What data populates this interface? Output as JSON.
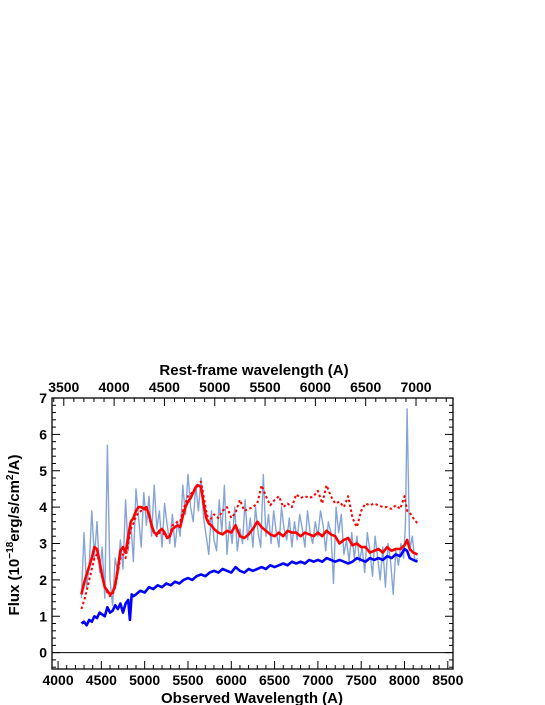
{
  "chart_data": {
    "type": "line",
    "xlabel": "Observed Wavelength (A)",
    "x2label": "Rest-frame wavelength (A)",
    "ylabel_main": "Flux (10",
    "ylabel_exp1": "−18",
    "ylabel_mid": "erg/s/cm",
    "ylabel_exp2": "2",
    "ylabel_end": "/A)",
    "xlim": [
      3930,
      8560
    ],
    "ylim": [
      -0.45,
      7
    ],
    "x_ticks": [
      4000,
      4500,
      5000,
      5500,
      6000,
      6500,
      7000,
      7500,
      8000,
      8500
    ],
    "x2_ticks": [
      3500,
      4000,
      4500,
      5000,
      5500,
      6000,
      6500,
      7000
    ],
    "x2_tick_positions_observed": [
      4066,
      4647,
      5228,
      5809,
      6390,
      6971,
      7552,
      8133
    ],
    "y_ticks": [
      0,
      1,
      2,
      3,
      4,
      5,
      6,
      7
    ],
    "zero_line": 0,
    "series": [
      {
        "color": "#7f9fd4",
        "style": "observed-spectrum",
        "x": [
          4270,
          4300,
          4330,
          4360,
          4390,
          4420,
          4450,
          4480,
          4510,
          4540,
          4570,
          4600,
          4630,
          4660,
          4690,
          4720,
          4750,
          4780,
          4810,
          4840,
          4870,
          4900,
          4930,
          4960,
          4990,
          5020,
          5050,
          5080,
          5110,
          5140,
          5170,
          5200,
          5230,
          5260,
          5290,
          5320,
          5350,
          5380,
          5410,
          5440,
          5470,
          5500,
          5530,
          5560,
          5590,
          5620,
          5650,
          5680,
          5710,
          5740,
          5770,
          5800,
          5830,
          5860,
          5890,
          5920,
          5950,
          5980,
          6010,
          6040,
          6070,
          6100,
          6130,
          6160,
          6190,
          6220,
          6250,
          6280,
          6310,
          6340,
          6370,
          6400,
          6430,
          6460,
          6490,
          6520,
          6550,
          6580,
          6610,
          6640,
          6670,
          6700,
          6730,
          6760,
          6790,
          6820,
          6850,
          6880,
          6910,
          6940,
          6970,
          7000,
          7030,
          7060,
          7090,
          7120,
          7150,
          7180,
          7210,
          7240,
          7270,
          7300,
          7330,
          7360,
          7390,
          7420,
          7450,
          7480,
          7510,
          7540,
          7570,
          7600,
          7630,
          7660,
          7690,
          7720,
          7750,
          7780,
          7810,
          7840,
          7870,
          7900,
          7930,
          7960,
          7990,
          8010,
          8030,
          8060,
          8090,
          8120,
          8150
        ],
        "y": [
          1.5,
          3.3,
          1.8,
          2.4,
          3.9,
          2.6,
          3.6,
          2.2,
          2.9,
          1.5,
          5.7,
          2.0,
          1.3,
          2.6,
          2.2,
          3.1,
          2.3,
          4.2,
          2.8,
          3.6,
          2.5,
          4.5,
          3.7,
          2.9,
          4.4,
          3.5,
          4.3,
          3.2,
          4.6,
          3.4,
          3.9,
          2.9,
          4.1,
          3.5,
          3.0,
          3.8,
          2.9,
          3.6,
          3.2,
          4.6,
          3.8,
          4.9,
          4.0,
          3.6,
          4.6,
          3.9,
          4.8,
          3.7,
          3.2,
          2.7,
          3.9,
          3.1,
          2.8,
          4.2,
          3.3,
          4.6,
          2.7,
          3.6,
          3.0,
          4.0,
          2.8,
          3.4,
          3.0,
          4.2,
          3.1,
          3.7,
          2.9,
          4.0,
          3.3,
          2.9,
          4.9,
          3.2,
          3.8,
          3.0,
          3.9,
          3.3,
          2.9,
          4.0,
          3.4,
          3.1,
          3.7,
          2.9,
          3.6,
          3.1,
          3.8,
          3.4,
          2.9,
          3.9,
          3.3,
          3.0,
          3.6,
          3.2,
          3.9,
          3.5,
          2.8,
          3.6,
          3.3,
          1.9,
          4.0,
          3.3,
          3.8,
          2.7,
          3.1,
          2.5,
          3.3,
          2.6,
          3.2,
          2.5,
          2.9,
          2.2,
          3.3,
          2.8,
          2.1,
          3.2,
          2.6,
          2.0,
          2.9,
          1.8,
          3.0,
          2.5,
          1.6,
          2.8,
          2.4,
          3.0,
          2.6,
          3.5,
          6.7,
          2.8,
          3.2,
          2.5,
          2.6
        ]
      },
      {
        "color": "#ff0000",
        "style": "model-solid",
        "x": [
          4270,
          4310,
          4350,
          4390,
          4420,
          4450,
          4480,
          4510,
          4540,
          4570,
          4600,
          4630,
          4660,
          4690,
          4720,
          4750,
          4780,
          4810,
          4840,
          4870,
          4900,
          4930,
          4960,
          4990,
          5020,
          5050,
          5080,
          5110,
          5140,
          5170,
          5200,
          5230,
          5260,
          5290,
          5320,
          5350,
          5380,
          5410,
          5440,
          5470,
          5500,
          5530,
          5560,
          5590,
          5620,
          5650,
          5680,
          5710,
          5740,
          5770,
          5800,
          5850,
          5900,
          5950,
          6000,
          6050,
          6100,
          6150,
          6200,
          6250,
          6300,
          6350,
          6400,
          6450,
          6500,
          6550,
          6600,
          6650,
          6700,
          6750,
          6800,
          6850,
          6900,
          6950,
          7000,
          7050,
          7100,
          7150,
          7200,
          7250,
          7300,
          7350,
          7400,
          7450,
          7500,
          7550,
          7600,
          7650,
          7700,
          7750,
          7800,
          7850,
          7900,
          7950,
          8000,
          8030,
          8060,
          8100,
          8150
        ],
        "y": [
          1.6,
          2.0,
          2.3,
          2.6,
          2.9,
          2.85,
          2.5,
          2.1,
          1.8,
          1.7,
          1.6,
          1.65,
          1.85,
          2.3,
          2.8,
          2.9,
          2.75,
          3.2,
          3.6,
          3.7,
          3.9,
          4.0,
          4.0,
          3.95,
          4.0,
          3.8,
          3.5,
          3.3,
          3.25,
          3.35,
          3.4,
          3.3,
          3.15,
          3.2,
          3.4,
          3.45,
          3.5,
          3.45,
          3.75,
          4.0,
          4.15,
          4.25,
          4.4,
          4.55,
          4.6,
          4.55,
          4.1,
          3.7,
          3.55,
          3.5,
          3.4,
          3.3,
          3.25,
          3.35,
          3.3,
          3.5,
          3.2,
          3.15,
          3.25,
          3.4,
          3.6,
          3.45,
          3.35,
          3.25,
          3.2,
          3.3,
          3.2,
          3.35,
          3.3,
          3.3,
          3.2,
          3.3,
          3.25,
          3.2,
          3.3,
          3.2,
          3.35,
          3.25,
          3.2,
          3.0,
          3.1,
          3.15,
          2.95,
          3.0,
          2.9,
          2.9,
          2.75,
          2.8,
          2.85,
          2.75,
          2.9,
          2.8,
          2.85,
          2.85,
          2.95,
          3.1,
          2.85,
          2.75,
          2.7
        ]
      },
      {
        "color": "#ff0000",
        "style": "model-dotted",
        "x": [
          4270,
          4310,
          4350,
          4390,
          4420,
          4450,
          4480,
          4510,
          4540,
          4570,
          4600,
          4630,
          4660,
          4690,
          4720,
          4750,
          4780,
          4810,
          4840,
          4870,
          4900,
          4930,
          4960,
          4990,
          5020,
          5050,
          5080,
          5110,
          5140,
          5170,
          5200,
          5230,
          5260,
          5290,
          5320,
          5350,
          5380,
          5410,
          5440,
          5470,
          5500,
          5530,
          5560,
          5590,
          5620,
          5650,
          5680,
          5710,
          5740,
          5770,
          5800,
          5850,
          5900,
          5950,
          6000,
          6050,
          6100,
          6150,
          6200,
          6250,
          6300,
          6350,
          6400,
          6450,
          6500,
          6550,
          6600,
          6650,
          6700,
          6750,
          6800,
          6850,
          6900,
          6950,
          7000,
          7050,
          7100,
          7150,
          7200,
          7250,
          7300,
          7350,
          7400,
          7450,
          7500,
          7550,
          7600,
          7650,
          7700,
          7750,
          7800,
          7850,
          7900,
          7950,
          8000,
          8030,
          8060,
          8100,
          8150
        ],
        "y": [
          1.2,
          1.5,
          1.9,
          2.3,
          2.6,
          2.7,
          2.45,
          2.1,
          1.8,
          1.65,
          1.55,
          1.6,
          1.8,
          2.2,
          2.6,
          2.7,
          2.6,
          3.0,
          3.4,
          3.55,
          3.75,
          3.85,
          3.9,
          3.9,
          3.95,
          3.75,
          3.45,
          3.3,
          3.2,
          3.3,
          3.3,
          3.25,
          3.15,
          3.2,
          3.5,
          3.55,
          3.6,
          3.6,
          3.9,
          4.1,
          4.3,
          4.35,
          4.45,
          4.55,
          4.65,
          4.7,
          4.3,
          3.9,
          3.6,
          3.7,
          3.8,
          3.7,
          3.9,
          4.0,
          3.7,
          3.85,
          4.2,
          3.9,
          3.95,
          4.0,
          4.1,
          4.6,
          4.3,
          4.05,
          4.2,
          4.3,
          4.0,
          4.1,
          4.0,
          4.35,
          4.25,
          4.3,
          4.25,
          4.3,
          4.45,
          4.1,
          4.6,
          4.3,
          4.1,
          4.15,
          4.0,
          4.3,
          3.7,
          3.45,
          3.9,
          4.1,
          4.05,
          4.1,
          4.05,
          4.0,
          4.0,
          3.95,
          4.05,
          3.95,
          4.3,
          3.9,
          3.85,
          3.7,
          3.55
        ]
      },
      {
        "color": "#0000ff",
        "style": "model-solid",
        "x": [
          4270,
          4300,
          4330,
          4360,
          4390,
          4420,
          4450,
          4480,
          4510,
          4540,
          4570,
          4600,
          4630,
          4660,
          4690,
          4720,
          4750,
          4780,
          4810,
          4830,
          4850,
          4870,
          4900,
          4950,
          5000,
          5050,
          5100,
          5150,
          5200,
          5250,
          5300,
          5350,
          5400,
          5450,
          5500,
          5550,
          5600,
          5650,
          5700,
          5750,
          5800,
          5850,
          5900,
          5950,
          6000,
          6050,
          6100,
          6150,
          6200,
          6250,
          6300,
          6350,
          6400,
          6450,
          6500,
          6550,
          6600,
          6650,
          6700,
          6750,
          6800,
          6850,
          6900,
          6950,
          7000,
          7050,
          7100,
          7150,
          7200,
          7250,
          7300,
          7350,
          7400,
          7450,
          7500,
          7550,
          7600,
          7650,
          7700,
          7750,
          7800,
          7850,
          7900,
          7950,
          8000,
          8030,
          8060,
          8100,
          8150
        ],
        "y": [
          0.8,
          0.85,
          0.75,
          0.9,
          0.85,
          1.0,
          0.95,
          1.1,
          1.05,
          1.0,
          1.25,
          1.1,
          1.15,
          1.3,
          1.2,
          1.35,
          1.1,
          1.35,
          1.45,
          0.9,
          1.6,
          1.55,
          1.6,
          1.7,
          1.65,
          1.8,
          1.75,
          1.85,
          1.8,
          1.9,
          1.85,
          1.95,
          1.9,
          2.0,
          2.05,
          2.0,
          2.1,
          2.15,
          2.1,
          2.2,
          2.25,
          2.2,
          2.3,
          2.25,
          2.2,
          2.35,
          2.25,
          2.2,
          2.3,
          2.25,
          2.3,
          2.35,
          2.3,
          2.4,
          2.35,
          2.4,
          2.45,
          2.4,
          2.5,
          2.45,
          2.5,
          2.45,
          2.55,
          2.5,
          2.55,
          2.5,
          2.6,
          2.55,
          2.5,
          2.55,
          2.5,
          2.45,
          2.5,
          2.6,
          2.55,
          2.5,
          2.6,
          2.55,
          2.6,
          2.55,
          2.65,
          2.6,
          2.7,
          2.65,
          2.85,
          2.8,
          2.6,
          2.55,
          2.5
        ]
      }
    ]
  }
}
